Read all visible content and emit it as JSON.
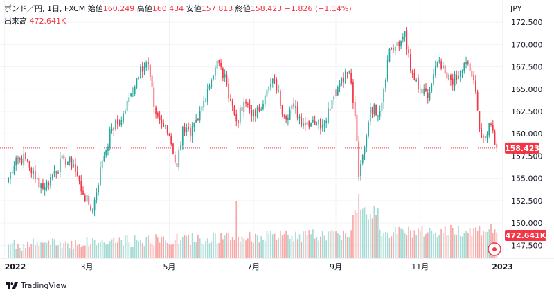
{
  "header": {
    "symbol": "ポンド／円, 1日, FXCM",
    "open_label": "始値",
    "open_value": "160.249",
    "high_label": "高値",
    "high_value": "160.434",
    "low_label": "安値",
    "low_value": "157.813",
    "close_label": "終値",
    "close_value": "158.423",
    "change": "−1.826 (−1.14%)",
    "volume_label": "出来高",
    "volume_value": "472.641K"
  },
  "currency": "JPY",
  "branding": {
    "name": "TradingView"
  },
  "colors": {
    "up": "#26a69a",
    "down": "#f23645",
    "vol_up": "#a7dcd6",
    "vol_down": "#f7a9a7",
    "grid": "#f0f3fa"
  },
  "icons": {
    "logo": "tradingview-logo-icon",
    "replay": "replay-icon"
  },
  "chart_data": {
    "type": "candlestick",
    "ylim": [
      146.2,
      173.6
    ],
    "y_ticks": [
      "172.500",
      "170.000",
      "167.500",
      "165.000",
      "162.500",
      "160.000",
      "157.500",
      "155.000",
      "152.500",
      "150.000",
      "147.500"
    ],
    "x_ticks": [
      "2022",
      "3月",
      "5月",
      "7月",
      "9月",
      "11月",
      "2023"
    ],
    "last_price_label": "158.423",
    "last_volume_label": "472.641K",
    "close_anchors": [
      [
        0,
        154.5
      ],
      [
        5,
        157.3
      ],
      [
        10,
        157.2
      ],
      [
        15,
        155.0
      ],
      [
        20,
        154.0
      ],
      [
        25,
        155.8
      ],
      [
        30,
        157.2
      ],
      [
        35,
        156.5
      ],
      [
        40,
        153.2
      ],
      [
        45,
        151.4
      ],
      [
        50,
        157.0
      ],
      [
        55,
        160.6
      ],
      [
        60,
        161.5
      ],
      [
        65,
        164.5
      ],
      [
        70,
        167.5
      ],
      [
        74,
        167.8
      ],
      [
        77,
        163.0
      ],
      [
        80,
        161.5
      ],
      [
        85,
        159.8
      ],
      [
        89,
        156.3
      ],
      [
        92,
        160.8
      ],
      [
        96,
        159.8
      ],
      [
        100,
        161.5
      ],
      [
        105,
        165.0
      ],
      [
        110,
        168.2
      ],
      [
        115,
        165.5
      ],
      [
        120,
        161.4
      ],
      [
        125,
        163.4
      ],
      [
        130,
        162.0
      ],
      [
        135,
        164.3
      ],
      [
        140,
        166.0
      ],
      [
        145,
        162.0
      ],
      [
        150,
        163.0
      ],
      [
        155,
        161.2
      ],
      [
        160,
        161.5
      ],
      [
        165,
        161.0
      ],
      [
        170,
        163.8
      ],
      [
        175,
        166.3
      ],
      [
        179,
        167.0
      ],
      [
        182,
        162.0
      ],
      [
        184,
        155.2
      ],
      [
        187,
        158.5
      ],
      [
        190,
        163.0
      ],
      [
        195,
        162.5
      ],
      [
        200,
        169.5
      ],
      [
        205,
        169.8
      ],
      [
        208,
        171.5
      ],
      [
        211,
        167.0
      ],
      [
        215,
        165.0
      ],
      [
        220,
        164.0
      ],
      [
        225,
        168.0
      ],
      [
        230,
        166.2
      ],
      [
        235,
        166.0
      ],
      [
        240,
        168.0
      ],
      [
        244,
        166.0
      ],
      [
        247,
        160.5
      ],
      [
        250,
        159.5
      ],
      [
        253,
        161.0
      ],
      [
        256,
        158.4
      ]
    ]
  }
}
